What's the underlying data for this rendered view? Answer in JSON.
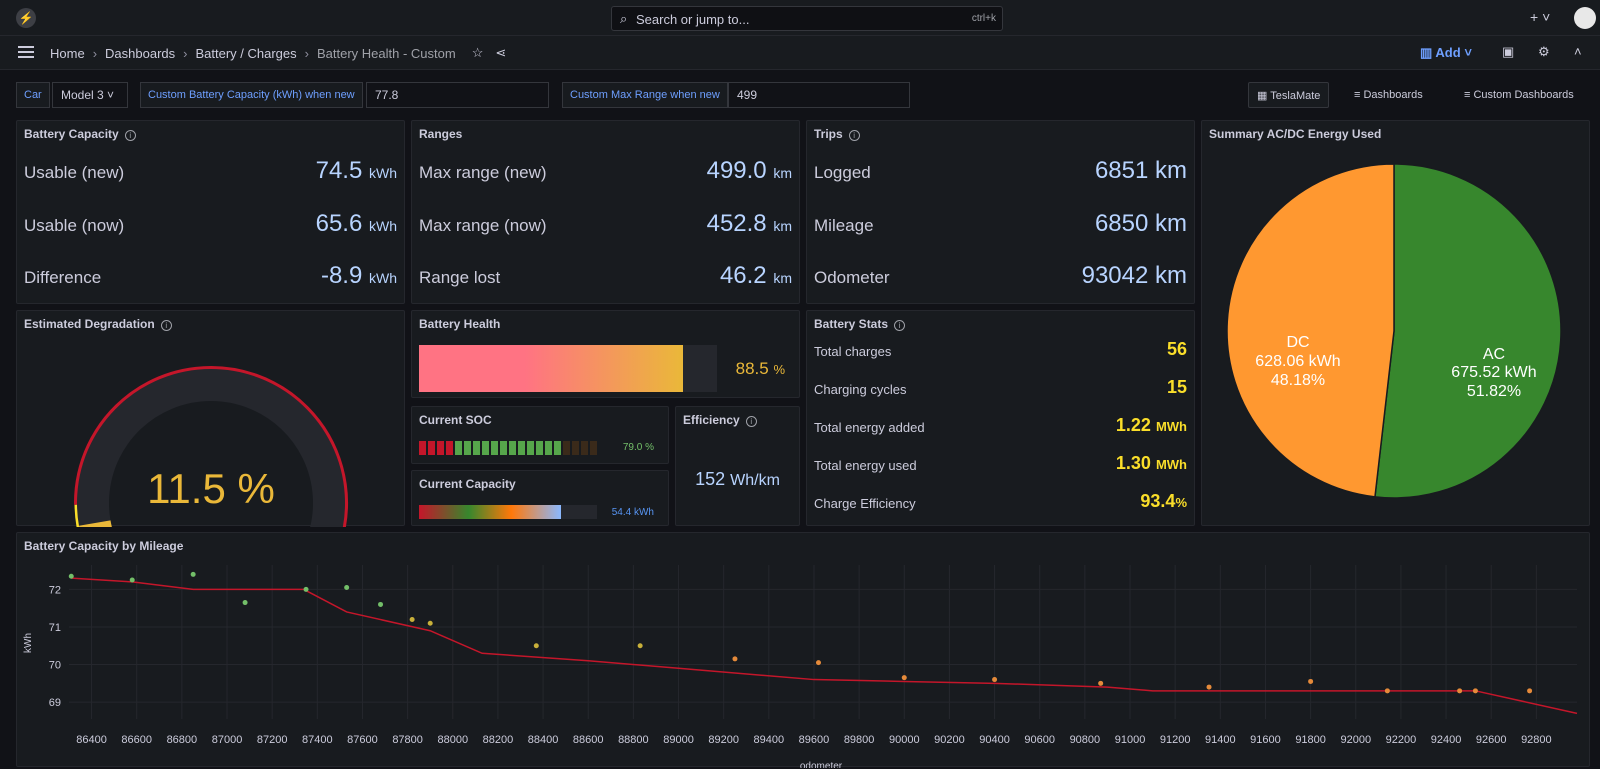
{
  "topbar": {
    "search_placeholder": "Search or jump to...",
    "search_shortcut": "ctrl+k",
    "new_label": "+ ˅"
  },
  "breadcrumb": {
    "home": "Home",
    "dashboards": "Dashboards",
    "folder": "Battery / Charges",
    "current": "Battery Health - Custom"
  },
  "toolbar": {
    "add_label": "Add"
  },
  "variables": {
    "car_label": "Car",
    "car_value": "Model 3",
    "capacity_label": "Custom Battery Capacity (kWh) when new",
    "capacity_value": "77.8",
    "range_label": "Custom Max Range when new",
    "range_value": "499"
  },
  "links": {
    "teslamate": "TeslaMate",
    "dashboards": "Dashboards",
    "custom": "Custom Dashboards"
  },
  "battery_capacity": {
    "title": "Battery Capacity",
    "rows": [
      {
        "label": "Usable (new)",
        "value": "74.5",
        "unit": "kWh"
      },
      {
        "label": "Usable (now)",
        "value": "65.6",
        "unit": "kWh"
      },
      {
        "label": "Difference",
        "value": "-8.9",
        "unit": "kWh"
      }
    ]
  },
  "ranges": {
    "title": "Ranges",
    "rows": [
      {
        "label": "Max range (new)",
        "value": "499.0",
        "unit": "km"
      },
      {
        "label": "Max range (now)",
        "value": "452.8",
        "unit": "km"
      },
      {
        "label": "Range lost",
        "value": "46.2",
        "unit": "km"
      }
    ]
  },
  "trips": {
    "title": "Trips",
    "rows": [
      {
        "label": "Logged",
        "value": "6851 km"
      },
      {
        "label": "Mileage",
        "value": "6850 km"
      },
      {
        "label": "Odometer",
        "value": "93042 km"
      }
    ]
  },
  "summary": {
    "title": "Summary AC/DC Energy Used",
    "ac": {
      "name": "AC",
      "value": "675.52 kWh",
      "pct": "51.82%",
      "fraction": 0.5182
    },
    "dc": {
      "name": "DC",
      "value": "628.06 kWh",
      "pct": "48.18%",
      "fraction": 0.4818
    }
  },
  "degradation": {
    "title": "Estimated Degradation",
    "value": "11.5 %",
    "fraction": 0.115
  },
  "battery_health": {
    "title": "Battery Health",
    "value": "88.5",
    "unit": "%",
    "fraction": 0.885
  },
  "soc": {
    "title": "Current SOC",
    "value": "79.0 %",
    "fraction": 0.79
  },
  "current_capacity": {
    "title": "Current Capacity",
    "value": "54.4 kWh",
    "fraction": 0.8
  },
  "efficiency": {
    "title": "Efficiency",
    "value": "152",
    "unit": "Wh/km"
  },
  "battery_stats": {
    "title": "Battery Stats",
    "rows": [
      {
        "label": "Total charges",
        "value": "56",
        "unit": ""
      },
      {
        "label": "Charging cycles",
        "value": "15",
        "unit": ""
      },
      {
        "label": "Total energy added",
        "value": "1.22",
        "unit": "MWh"
      },
      {
        "label": "Total energy used",
        "value": "1.30",
        "unit": "MWh"
      },
      {
        "label": "Charge Efficiency",
        "value": "93.4",
        "unit": "%"
      }
    ]
  },
  "chart_data": {
    "type": "line",
    "title": "Battery Capacity by Mileage",
    "xlabel": "odometer",
    "ylabel": "kWh",
    "xlim": [
      86300,
      92980
    ],
    "ylim": [
      68.55,
      72.65
    ],
    "xticks": [
      86400,
      86600,
      86800,
      87000,
      87200,
      87400,
      87600,
      87800,
      88000,
      88200,
      88400,
      88600,
      88800,
      89000,
      89200,
      89400,
      89600,
      89800,
      90000,
      90200,
      90400,
      90600,
      90800,
      91000,
      91200,
      91400,
      91600,
      91800,
      92000,
      92200,
      92400,
      92600,
      92800
    ],
    "yticks": [
      69,
      70,
      71,
      72
    ],
    "line_color": "#c4162a",
    "series_line": [
      [
        86310,
        72.3
      ],
      [
        86580,
        72.2
      ],
      [
        86850,
        72.0
      ],
      [
        87340,
        72.0
      ],
      [
        87530,
        71.4
      ],
      [
        87900,
        70.9
      ],
      [
        88130,
        70.3
      ],
      [
        88600,
        70.1
      ],
      [
        89000,
        69.9
      ],
      [
        89600,
        69.6
      ],
      [
        90000,
        69.55
      ],
      [
        90400,
        69.5
      ],
      [
        90900,
        69.4
      ],
      [
        91100,
        69.3
      ],
      [
        91500,
        69.3
      ],
      [
        92140,
        69.3
      ],
      [
        92530,
        69.3
      ],
      [
        92980,
        68.7
      ]
    ],
    "series_points": [
      [
        86310,
        72.35
      ],
      [
        86580,
        72.25
      ],
      [
        86850,
        72.4
      ],
      [
        87080,
        71.65
      ],
      [
        87350,
        72.0
      ],
      [
        87530,
        72.05
      ],
      [
        87680,
        71.6
      ],
      [
        87820,
        71.2
      ],
      [
        87900,
        71.1
      ],
      [
        88370,
        70.5
      ],
      [
        88830,
        70.5
      ],
      [
        89250,
        70.15
      ],
      [
        89620,
        70.05
      ],
      [
        90000,
        69.65
      ],
      [
        90400,
        69.6
      ],
      [
        90870,
        69.5
      ],
      [
        91350,
        69.4
      ],
      [
        91800,
        69.55
      ],
      [
        92140,
        69.3
      ],
      [
        92460,
        69.3
      ],
      [
        92530,
        69.3
      ],
      [
        92770,
        69.3
      ]
    ]
  }
}
